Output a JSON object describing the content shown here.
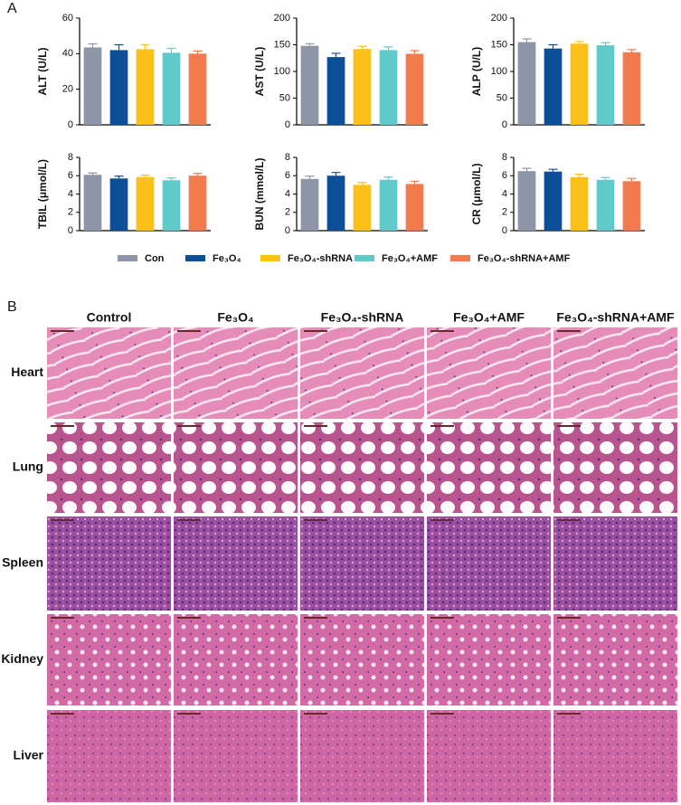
{
  "panel_labels": [
    "A",
    "B"
  ],
  "chart_data": [
    {
      "type": "bar",
      "ylabel": "ALT (U/L)",
      "ylim": [
        0,
        60
      ],
      "yticks": [
        0,
        20,
        40,
        60
      ],
      "series": [
        {
          "name": "Con",
          "color": "#8e95a8",
          "values": [
            43.5
          ],
          "errors": [
            2
          ]
        },
        {
          "name": "Fe₃O₄",
          "color": "#0d4f97",
          "values": [
            42
          ],
          "errors": [
            3
          ]
        },
        {
          "name": "Fe₃O₄-shRNA",
          "color": "#fcc118",
          "values": [
            42.5
          ],
          "errors": [
            2.5
          ]
        },
        {
          "name": "Fe₃O₄+AMF",
          "color": "#62c9cb",
          "values": [
            40.5
          ],
          "errors": [
            2.5
          ]
        },
        {
          "name": "Fe₃O₄-shRNA+AMF",
          "color": "#f27b4e",
          "values": [
            40
          ],
          "errors": [
            1.5
          ]
        }
      ]
    },
    {
      "type": "bar",
      "ylabel": "AST (U/L)",
      "ylim": [
        0,
        200
      ],
      "yticks": [
        0,
        50,
        100,
        150,
        200
      ],
      "series": [
        {
          "name": "Con",
          "color": "#8e95a8",
          "values": [
            148
          ],
          "errors": [
            4
          ]
        },
        {
          "name": "Fe₃O₄",
          "color": "#0d4f97",
          "values": [
            127
          ],
          "errors": [
            7
          ]
        },
        {
          "name": "Fe₃O₄-shRNA",
          "color": "#fcc118",
          "values": [
            142
          ],
          "errors": [
            5
          ]
        },
        {
          "name": "Fe₃O₄+AMF",
          "color": "#62c9cb",
          "values": [
            140
          ],
          "errors": [
            6
          ]
        },
        {
          "name": "Fe₃O₄-shRNA+AMF",
          "color": "#f27b4e",
          "values": [
            133
          ],
          "errors": [
            6
          ]
        }
      ]
    },
    {
      "type": "bar",
      "ylabel": "ALP (U/L)",
      "ylim": [
        0,
        200
      ],
      "yticks": [
        0,
        50,
        100,
        150,
        200
      ],
      "series": [
        {
          "name": "Con",
          "color": "#8e95a8",
          "values": [
            155
          ],
          "errors": [
            6
          ]
        },
        {
          "name": "Fe₃O₄",
          "color": "#0d4f97",
          "values": [
            143
          ],
          "errors": [
            7
          ]
        },
        {
          "name": "Fe₃O₄-shRNA",
          "color": "#fcc118",
          "values": [
            152
          ],
          "errors": [
            4
          ]
        },
        {
          "name": "Fe₃O₄+AMF",
          "color": "#62c9cb",
          "values": [
            149
          ],
          "errors": [
            5
          ]
        },
        {
          "name": "Fe₃O₄-shRNA+AMF",
          "color": "#f27b4e",
          "values": [
            136
          ],
          "errors": [
            5
          ]
        }
      ]
    },
    {
      "type": "bar",
      "ylabel": "TBIL (μmol/L)",
      "ylim": [
        0,
        8
      ],
      "yticks": [
        0,
        2,
        4,
        6,
        8
      ],
      "series": [
        {
          "name": "Con",
          "color": "#8e95a8",
          "values": [
            6.1
          ],
          "errors": [
            0.2
          ]
        },
        {
          "name": "Fe₃O₄",
          "color": "#0d4f97",
          "values": [
            5.7
          ],
          "errors": [
            0.25
          ]
        },
        {
          "name": "Fe₃O₄-shRNA",
          "color": "#fcc118",
          "values": [
            5.85
          ],
          "errors": [
            0.2
          ]
        },
        {
          "name": "Fe₃O₄+AMF",
          "color": "#62c9cb",
          "values": [
            5.5
          ],
          "errors": [
            0.25
          ]
        },
        {
          "name": "Fe₃O₄-shRNA+AMF",
          "color": "#f27b4e",
          "values": [
            6.0
          ],
          "errors": [
            0.25
          ]
        }
      ]
    },
    {
      "type": "bar",
      "ylabel": "BUN (mmol/L)",
      "ylim": [
        0,
        8
      ],
      "yticks": [
        0,
        2,
        4,
        6,
        8
      ],
      "series": [
        {
          "name": "Con",
          "color": "#8e95a8",
          "values": [
            5.65
          ],
          "errors": [
            0.3
          ]
        },
        {
          "name": "Fe₃O₄",
          "color": "#0d4f97",
          "values": [
            6.0
          ],
          "errors": [
            0.35
          ]
        },
        {
          "name": "Fe₃O₄-shRNA",
          "color": "#fcc118",
          "values": [
            5.0
          ],
          "errors": [
            0.25
          ]
        },
        {
          "name": "Fe₃O₄+AMF",
          "color": "#62c9cb",
          "values": [
            5.55
          ],
          "errors": [
            0.3
          ]
        },
        {
          "name": "Fe₃O₄-shRNA+AMF",
          "color": "#f27b4e",
          "values": [
            5.1
          ],
          "errors": [
            0.3
          ]
        }
      ]
    },
    {
      "type": "bar",
      "ylabel": "CR (μmol/L)",
      "ylim": [
        0,
        8
      ],
      "yticks": [
        0,
        2,
        4,
        6,
        8
      ],
      "series": [
        {
          "name": "Con",
          "color": "#8e95a8",
          "values": [
            6.5
          ],
          "errors": [
            0.3
          ]
        },
        {
          "name": "Fe₃O₄",
          "color": "#0d4f97",
          "values": [
            6.45
          ],
          "errors": [
            0.25
          ]
        },
        {
          "name": "Fe₃O₄-shRNA",
          "color": "#fcc118",
          "values": [
            5.85
          ],
          "errors": [
            0.3
          ]
        },
        {
          "name": "Fe₃O₄+AMF",
          "color": "#62c9cb",
          "values": [
            5.55
          ],
          "errors": [
            0.25
          ]
        },
        {
          "name": "Fe₃O₄-shRNA+AMF",
          "color": "#f27b4e",
          "values": [
            5.4
          ],
          "errors": [
            0.3
          ]
        }
      ]
    }
  ],
  "histology": {
    "columns": [
      "Control",
      "Fe₃O₄",
      "Fe₃O₄-shRNA",
      "Fe₃O₄+AMF",
      "Fe₃O₄-shRNA+AMF"
    ],
    "rows": [
      "Heart",
      "Lung",
      "Spleen",
      "Kidney",
      "Liver"
    ]
  }
}
